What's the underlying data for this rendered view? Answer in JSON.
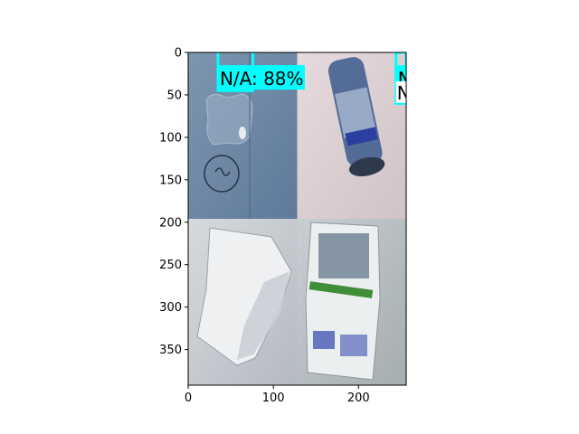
{
  "chart_data": {
    "type": "image",
    "title": "",
    "xlabel": "",
    "ylabel": "",
    "xlim": [
      0,
      256
    ],
    "ylim": [
      392,
      0
    ],
    "x_ticks": [
      0,
      100,
      200
    ],
    "y_ticks": [
      0,
      50,
      100,
      150,
      200,
      250,
      300,
      350
    ],
    "tiles": [
      {
        "name": "blue-surface-with-wrapper",
        "x": [
          0,
          128
        ],
        "y": [
          0,
          196
        ],
        "base_color": "#6f8aa8"
      },
      {
        "name": "plastic-bottle",
        "x": [
          128,
          256
        ],
        "y": [
          0,
          196
        ],
        "base_color": "#dccfd2"
      },
      {
        "name": "crumpled-paper",
        "x": [
          0,
          128
        ],
        "y": [
          196,
          392
        ],
        "base_color": "#c7ccd1"
      },
      {
        "name": "flyer-leaflet",
        "x": [
          128,
          256
        ],
        "y": [
          196,
          392
        ],
        "base_color": "#b9c0c3"
      }
    ],
    "detections": [
      {
        "label": "N/A: 88%",
        "box_x": [
          35,
          76
        ],
        "box_y": [
          -5,
          45
        ],
        "color": "#00ffff"
      },
      {
        "label": "N",
        "box_x": [
          244,
          256
        ],
        "box_y": [
          0,
          60
        ],
        "color": "#00ffff"
      }
    ],
    "extra_text": [
      "N"
    ]
  }
}
